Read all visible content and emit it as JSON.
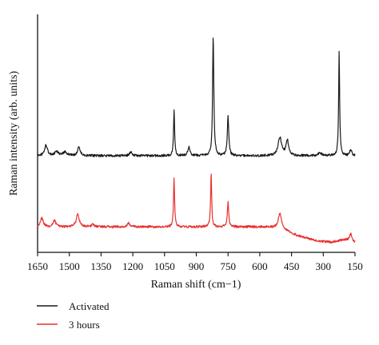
{
  "chart_data": {
    "type": "line",
    "title": "",
    "xlabel": "Raman shift (cm−1)",
    "ylabel": "Raman intensity (arb. units)",
    "x_reversed": true,
    "xlim": [
      1650,
      150
    ],
    "xticks": [
      1650,
      1500,
      1350,
      1200,
      1050,
      900,
      750,
      600,
      450,
      300,
      150
    ],
    "y_tick_labels": false,
    "grid": false,
    "legend_placement": "bottom-left, below the plot",
    "series": [
      {
        "name": "Activated",
        "color": "#1a1a1a",
        "baseline": 0.5,
        "peaks": [
          {
            "x": 1610,
            "height": 0.08,
            "width": 8
          },
          {
            "x": 1560,
            "height": 0.03,
            "width": 10
          },
          {
            "x": 1520,
            "height": 0.03,
            "width": 10
          },
          {
            "x": 1455,
            "height": 0.07,
            "width": 7
          },
          {
            "x": 1210,
            "height": 0.03,
            "width": 6
          },
          {
            "x": 1005,
            "height": 0.35,
            "width": 3
          },
          {
            "x": 935,
            "height": 0.07,
            "width": 6
          },
          {
            "x": 820,
            "height": 0.92,
            "width": 3.5
          },
          {
            "x": 750,
            "height": 0.3,
            "width": 4
          },
          {
            "x": 505,
            "height": 0.14,
            "width": 10
          },
          {
            "x": 470,
            "height": 0.12,
            "width": 7
          },
          {
            "x": 315,
            "height": 0.02,
            "width": 10
          },
          {
            "x": 225,
            "height": 0.8,
            "width": 3
          },
          {
            "x": 170,
            "height": 0.05,
            "width": 5
          }
        ]
      },
      {
        "name": "3 hours",
        "color": "#e8312f",
        "baseline": 0.0,
        "peaks": [
          {
            "x": 1630,
            "height": 0.07,
            "width": 8
          },
          {
            "x": 1570,
            "height": 0.05,
            "width": 7
          },
          {
            "x": 1460,
            "height": 0.1,
            "width": 8
          },
          {
            "x": 1390,
            "height": 0.02,
            "width": 6
          },
          {
            "x": 1220,
            "height": 0.03,
            "width": 6
          },
          {
            "x": 1005,
            "height": 0.38,
            "width": 3
          },
          {
            "x": 830,
            "height": 0.42,
            "width": 3
          },
          {
            "x": 750,
            "height": 0.19,
            "width": 4
          },
          {
            "x": 505,
            "height": 0.12,
            "width": 10
          },
          {
            "x": 170,
            "height": 0.06,
            "width": 6
          }
        ],
        "drift": [
          {
            "x": 1650,
            "dy": 0.0
          },
          {
            "x": 560,
            "dy": 0.0
          },
          {
            "x": 480,
            "dy": -0.03
          },
          {
            "x": 420,
            "dy": -0.07
          },
          {
            "x": 330,
            "dy": -0.11
          },
          {
            "x": 260,
            "dy": -0.12
          },
          {
            "x": 200,
            "dy": -0.1
          },
          {
            "x": 150,
            "dy": -0.12
          }
        ]
      }
    ]
  }
}
